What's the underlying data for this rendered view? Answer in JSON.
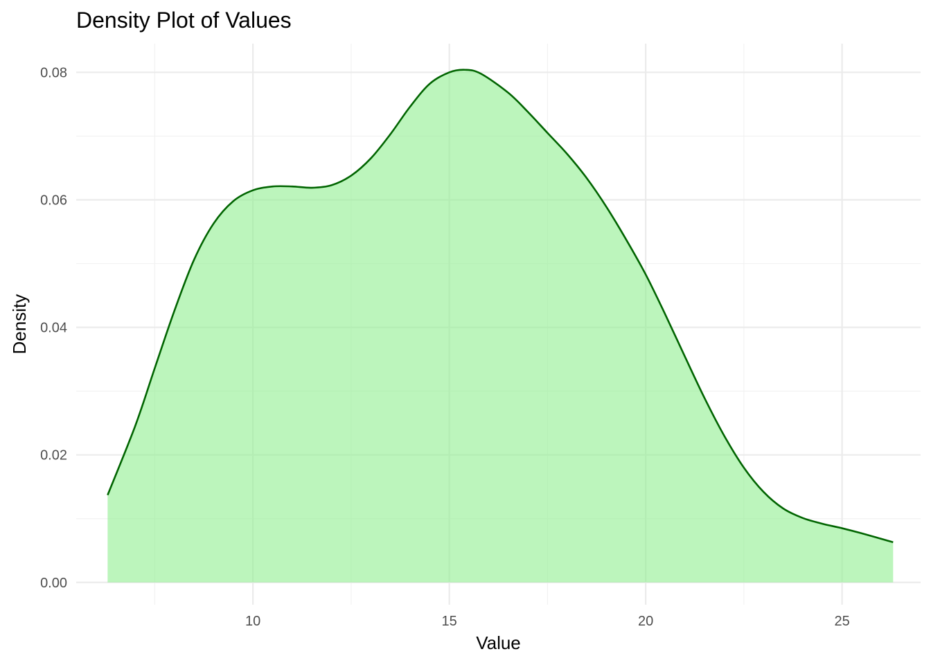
{
  "chart_data": {
    "type": "area",
    "title": "Density Plot of Values",
    "xlabel": "Value",
    "ylabel": "Density",
    "xlim": [
      5.5,
      27.0
    ],
    "ylim": [
      -0.0035,
      0.0845
    ],
    "x_ticks": [
      10,
      15,
      20,
      25
    ],
    "x_tick_labels": [
      "10",
      "15",
      "20",
      "25"
    ],
    "x_minor_ticks": [
      7.5,
      12.5,
      17.5,
      22.5
    ],
    "y_ticks": [
      0.0,
      0.02,
      0.04,
      0.06,
      0.08
    ],
    "y_tick_labels": [
      "0.00",
      "0.02",
      "0.04",
      "0.06",
      "0.08"
    ],
    "y_minor_ticks": [
      0.01,
      0.03,
      0.05,
      0.07
    ],
    "grid": true,
    "legend": "none",
    "series": [
      {
        "x": [
          6.3,
          7.0,
          7.5,
          8.0,
          8.5,
          9.0,
          9.5,
          10.0,
          10.5,
          11.0,
          11.5,
          12.0,
          12.5,
          13.0,
          13.5,
          14.0,
          14.5,
          15.0,
          15.4,
          15.8,
          16.5,
          17.0,
          17.5,
          18.0,
          18.5,
          19.0,
          19.5,
          20.0,
          20.5,
          21.0,
          21.5,
          22.0,
          22.5,
          23.0,
          23.5,
          24.0,
          24.5,
          25.0,
          25.5,
          26.3
        ],
        "y": [
          0.0137,
          0.0245,
          0.0336,
          0.0426,
          0.0506,
          0.0563,
          0.0598,
          0.0615,
          0.0621,
          0.0621,
          0.0619,
          0.0623,
          0.0638,
          0.0665,
          0.0703,
          0.0746,
          0.0782,
          0.08,
          0.0804,
          0.0798,
          0.0768,
          0.0738,
          0.0705,
          0.0672,
          0.0634,
          0.0589,
          0.0538,
          0.0483,
          0.042,
          0.0354,
          0.0289,
          0.023,
          0.018,
          0.0142,
          0.0116,
          0.0101,
          0.0092,
          0.0085,
          0.0077,
          0.0063
        ]
      }
    ],
    "colors": {
      "fill": "#90ee90",
      "fill_opacity": 0.6,
      "line": "#006400",
      "background": "#ffffff"
    }
  }
}
